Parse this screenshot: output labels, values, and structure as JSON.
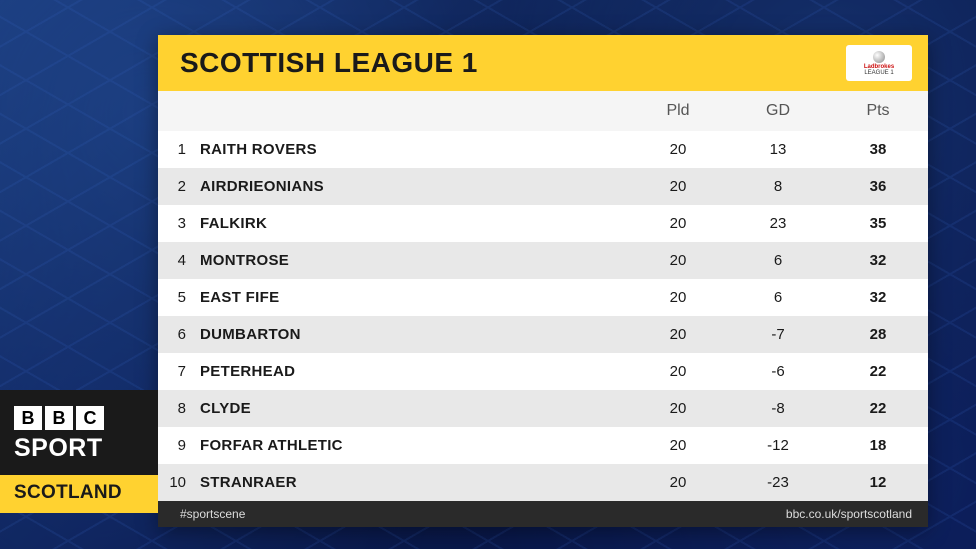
{
  "brand": {
    "b1": "B",
    "b2": "B",
    "b3": "C",
    "sport": "SPORT",
    "scotland": "SCOTLAND"
  },
  "title": "SCOTTISH LEAGUE 1",
  "sponsor": {
    "line1": "Ladbrokes",
    "line2": "LEAGUE 1"
  },
  "columns": {
    "pld": "Pld",
    "gd": "GD",
    "pts": "Pts"
  },
  "rows": [
    {
      "pos": "1",
      "team": "RAITH ROVERS",
      "pld": "20",
      "gd": "13",
      "pts": "38"
    },
    {
      "pos": "2",
      "team": "AIRDRIEONIANS",
      "pld": "20",
      "gd": "8",
      "pts": "36"
    },
    {
      "pos": "3",
      "team": "FALKIRK",
      "pld": "20",
      "gd": "23",
      "pts": "35"
    },
    {
      "pos": "4",
      "team": "MONTROSE",
      "pld": "20",
      "gd": "6",
      "pts": "32"
    },
    {
      "pos": "5",
      "team": "EAST FIFE",
      "pld": "20",
      "gd": "6",
      "pts": "32"
    },
    {
      "pos": "6",
      "team": "DUMBARTON",
      "pld": "20",
      "gd": "-7",
      "pts": "28"
    },
    {
      "pos": "7",
      "team": "PETERHEAD",
      "pld": "20",
      "gd": "-6",
      "pts": "22"
    },
    {
      "pos": "8",
      "team": "CLYDE",
      "pld": "20",
      "gd": "-8",
      "pts": "22"
    },
    {
      "pos": "9",
      "team": "FORFAR ATHLETIC",
      "pld": "20",
      "gd": "-12",
      "pts": "18"
    },
    {
      "pos": "10",
      "team": "STRANRAER",
      "pld": "20",
      "gd": "-23",
      "pts": "12"
    }
  ],
  "footer": {
    "hashtag": "#sportscene",
    "url": "bbc.co.uk/sportscotland"
  },
  "colors": {
    "yellow": "#ffd230",
    "dark": "#1a1a1a",
    "row_even": "#ffffff",
    "row_odd": "#e8e8e8",
    "header_bg": "#f5f5f5",
    "footer_bg": "#2a2a2a",
    "bg_deep": "#0a1a4a"
  }
}
